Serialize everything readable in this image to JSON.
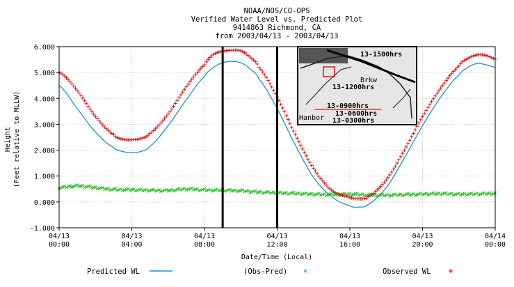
{
  "chart_data": {
    "type": "line",
    "title": [
      "NOAA/NOS/CO-OPS",
      "Verified  Water Level vs. Predicted Plot",
      "9414863 Richmond, CA",
      "from 2003/04/13 - 2003/04/13"
    ],
    "xlabel": "Date/Time (Local)",
    "ylabel": [
      "Height",
      "(Feet relative to MLLW)"
    ],
    "ylim": [
      -1.0,
      6.0
    ],
    "xlim_hours": [
      0,
      24
    ],
    "y_ticks": [
      "6.000",
      "5.000",
      "4.000",
      "3.000",
      "2.000",
      "1.000",
      "0.000",
      "-1.000"
    ],
    "x_ticks": [
      {
        "hour": 0,
        "date": "04/13",
        "time": "00:00"
      },
      {
        "hour": 4,
        "date": "04/13",
        "time": "04:00"
      },
      {
        "hour": 8,
        "date": "04/13",
        "time": "08:00"
      },
      {
        "hour": 12,
        "date": "04/13",
        "time": "12:00"
      },
      {
        "hour": 16,
        "date": "04/13",
        "time": "16:00"
      },
      {
        "hour": 20,
        "date": "04/13",
        "time": "20:00"
      },
      {
        "hour": 24,
        "date": "04/14",
        "time": "00:00"
      }
    ],
    "grid": true,
    "vertical_markers_hours": [
      9.0,
      12.0
    ],
    "legend_position": "bottom",
    "series": [
      {
        "name": "Predicted WL",
        "color": "#1e90d0",
        "style": "line",
        "x": [
          0,
          1,
          2,
          3,
          3.5,
          4,
          4.5,
          5,
          6,
          7,
          8,
          8.5,
          9,
          9.5,
          10,
          10.5,
          11,
          12,
          13,
          14,
          15,
          16,
          16.5,
          17,
          18,
          19,
          20,
          21,
          22,
          22.5,
          23,
          23.5,
          24
        ],
        "y": [
          4.5,
          3.6,
          2.7,
          2.1,
          1.95,
          1.9,
          1.95,
          2.15,
          2.95,
          3.95,
          4.85,
          5.2,
          5.38,
          5.43,
          5.38,
          5.15,
          4.75,
          3.6,
          2.2,
          0.95,
          0.2,
          -0.15,
          -0.2,
          -0.1,
          0.55,
          1.7,
          2.95,
          4.05,
          4.9,
          5.2,
          5.35,
          5.3,
          5.2
        ]
      },
      {
        "name": "(Obs-Pred)",
        "color": "#22bb22",
        "style": "x-marker",
        "x": [
          0,
          1,
          2,
          3,
          4,
          5,
          6,
          7,
          8,
          9,
          10,
          11,
          12,
          13,
          14,
          15,
          16,
          17,
          18,
          19,
          20,
          21,
          22,
          23,
          24
        ],
        "y": [
          0.55,
          0.62,
          0.55,
          0.48,
          0.47,
          0.45,
          0.44,
          0.5,
          0.46,
          0.45,
          0.43,
          0.38,
          0.35,
          0.33,
          0.3,
          0.28,
          0.3,
          0.27,
          0.26,
          0.28,
          0.3,
          0.32,
          0.3,
          0.31,
          0.33
        ]
      },
      {
        "name": "Observed WL",
        "color": "#dd1111",
        "style": "plus-marker",
        "x": [
          0,
          1,
          2,
          3,
          3.5,
          4,
          4.5,
          5,
          6,
          7,
          8,
          8.5,
          9,
          9.5,
          10,
          10.5,
          11,
          12,
          13,
          14,
          15,
          16,
          16.5,
          17,
          18,
          19,
          20,
          21,
          22,
          22.5,
          23,
          23.5,
          24
        ],
        "y": [
          5.02,
          4.3,
          3.3,
          2.6,
          2.42,
          2.4,
          2.45,
          2.65,
          3.4,
          4.45,
          5.3,
          5.7,
          5.82,
          5.86,
          5.84,
          5.6,
          5.2,
          4.05,
          2.6,
          1.3,
          0.45,
          0.18,
          0.12,
          0.2,
          0.85,
          2.0,
          3.3,
          4.4,
          5.25,
          5.55,
          5.68,
          5.66,
          5.52
        ]
      }
    ]
  },
  "legend": {
    "predicted_label": "Predicted WL",
    "diff_label": "(Obs-Pred)",
    "observed_label": "Observed WL"
  },
  "inset": {
    "labels": [
      "13-1500hrs",
      "13-1200hrs",
      "13-0900hrs",
      "13-0600hrs",
      "13-0300hrs",
      "Brkw",
      "Hanbor"
    ]
  }
}
